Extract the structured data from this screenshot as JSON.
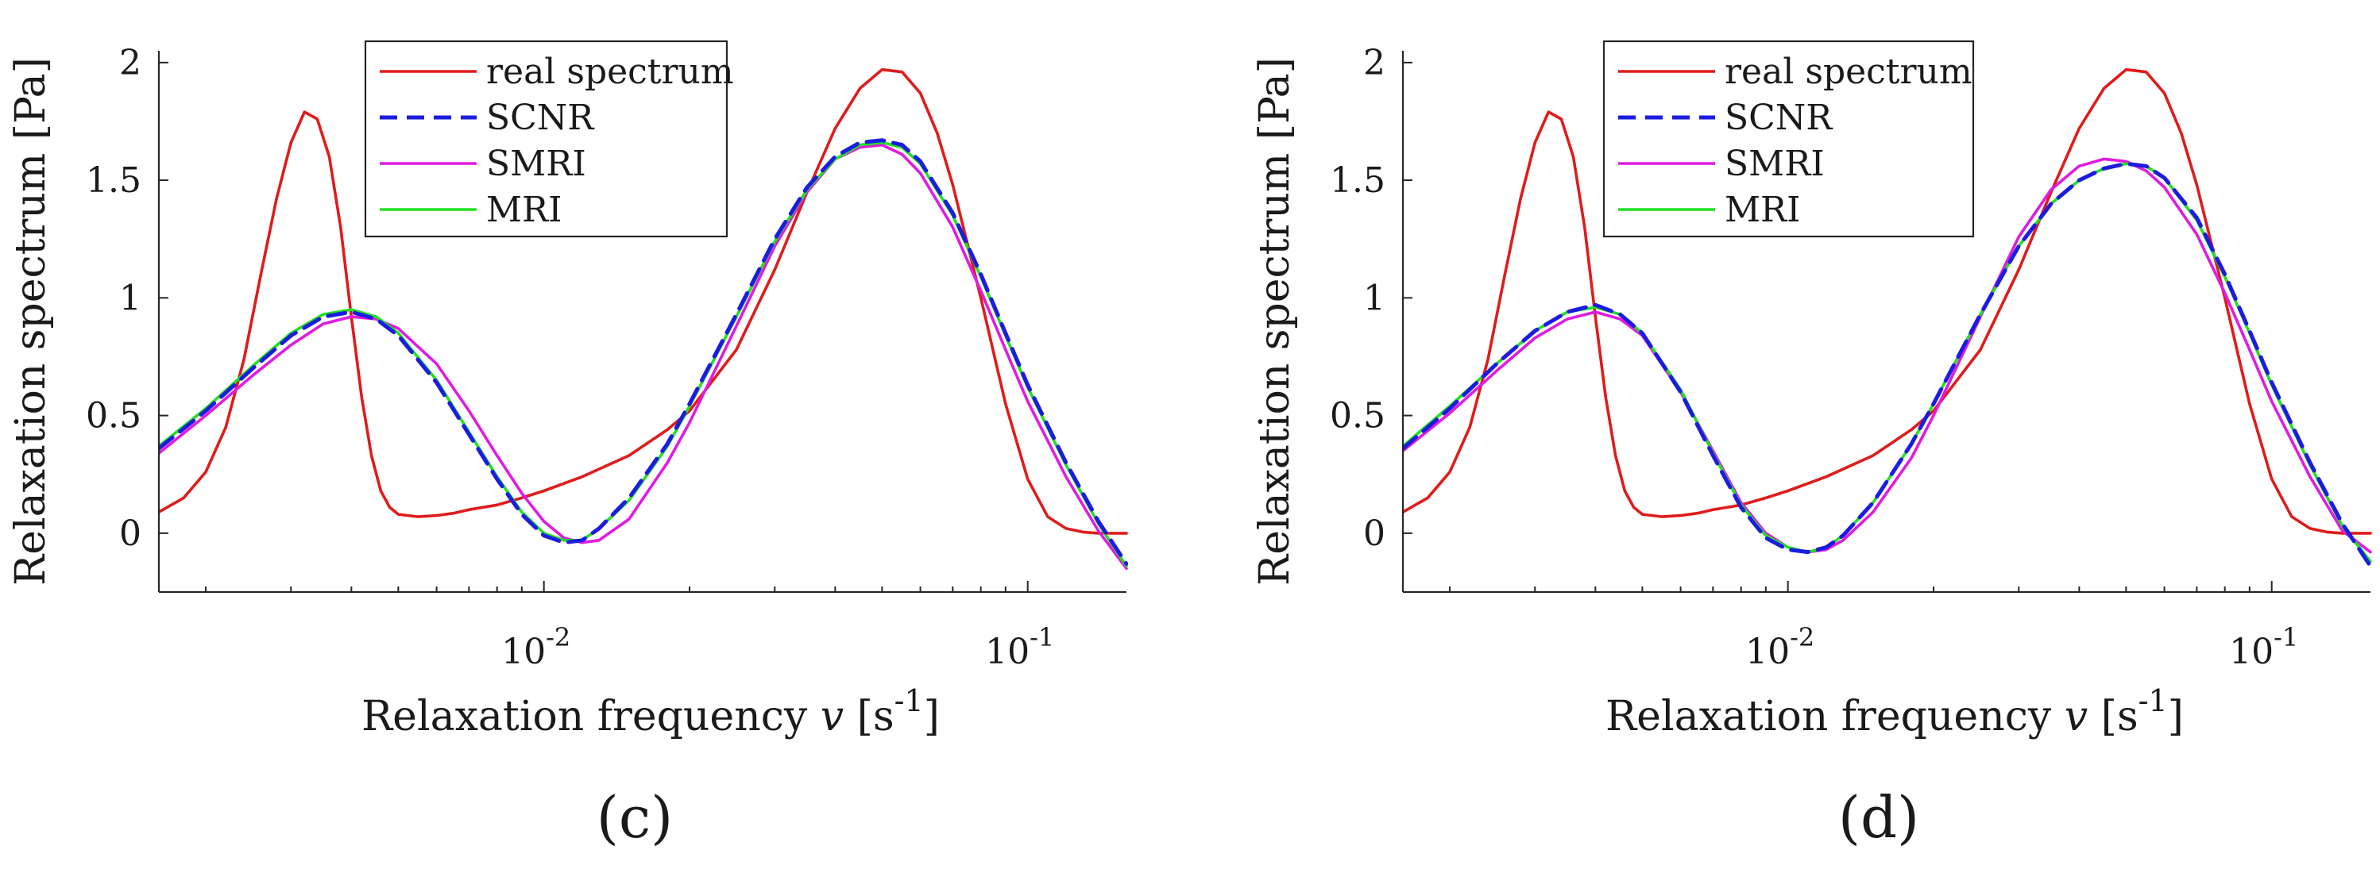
{
  "chart_data": [
    {
      "type": "line",
      "caption": "(c)",
      "xlabel": "Relaxation frequency",
      "xlabel_symbol": "v",
      "xlabel_unit_open": "[s",
      "xlabel_unit_exp": "-1",
      "xlabel_unit_close": "]",
      "ylabel": "Relaxation spectrum  [Pa]",
      "xscale": "log",
      "xlim": [
        0.0016,
        0.16
      ],
      "ylim": [
        -0.25,
        2.05
      ],
      "yticks": [
        0,
        0.5,
        1,
        1.5,
        2
      ],
      "ytick_labels": [
        "0",
        "0.5",
        "1",
        "1.5",
        "2"
      ],
      "xticks": [
        0.01,
        0.1
      ],
      "xtick_base": "10",
      "xtick_exps": [
        "-2",
        "-1"
      ],
      "legend_position": "top-center",
      "series": [
        {
          "name": "real spectrum",
          "color": "#e01b1b",
          "dash": "solid",
          "x": [
            0.0016,
            0.0018,
            0.002,
            0.0022,
            0.0024,
            0.0026,
            0.0028,
            0.003,
            0.0032,
            0.0034,
            0.0036,
            0.0038,
            0.004,
            0.0042,
            0.0044,
            0.0046,
            0.0048,
            0.005,
            0.0055,
            0.006,
            0.0065,
            0.007,
            0.008,
            0.009,
            0.01,
            0.012,
            0.015,
            0.018,
            0.02,
            0.025,
            0.03,
            0.035,
            0.04,
            0.045,
            0.05,
            0.055,
            0.06,
            0.065,
            0.07,
            0.08,
            0.09,
            0.1,
            0.11,
            0.12,
            0.13,
            0.14,
            0.15,
            0.16
          ],
          "y": [
            0.09,
            0.15,
            0.26,
            0.45,
            0.74,
            1.1,
            1.42,
            1.66,
            1.79,
            1.76,
            1.6,
            1.3,
            0.92,
            0.58,
            0.33,
            0.18,
            0.11,
            0.08,
            0.07,
            0.075,
            0.085,
            0.1,
            0.12,
            0.15,
            0.18,
            0.24,
            0.33,
            0.44,
            0.52,
            0.78,
            1.12,
            1.45,
            1.72,
            1.89,
            1.97,
            1.96,
            1.87,
            1.7,
            1.48,
            1.0,
            0.55,
            0.23,
            0.07,
            0.02,
            0.005,
            0.0,
            0.0,
            0.0
          ]
        },
        {
          "name": "SCNR",
          "color": "#1c1ce0",
          "dash": "dashed",
          "x": [
            0.0016,
            0.002,
            0.0025,
            0.003,
            0.0035,
            0.004,
            0.0045,
            0.005,
            0.006,
            0.007,
            0.008,
            0.009,
            0.01,
            0.011,
            0.012,
            0.013,
            0.015,
            0.018,
            0.02,
            0.025,
            0.03,
            0.035,
            0.04,
            0.045,
            0.05,
            0.055,
            0.06,
            0.07,
            0.08,
            0.09,
            0.1,
            0.12,
            0.14,
            0.16
          ],
          "y": [
            0.36,
            0.52,
            0.7,
            0.84,
            0.92,
            0.94,
            0.91,
            0.84,
            0.64,
            0.42,
            0.23,
            0.08,
            -0.01,
            -0.04,
            -0.03,
            0.02,
            0.15,
            0.38,
            0.55,
            0.93,
            1.25,
            1.47,
            1.6,
            1.66,
            1.67,
            1.65,
            1.58,
            1.36,
            1.1,
            0.85,
            0.63,
            0.3,
            0.05,
            -0.13
          ]
        },
        {
          "name": "SMRI",
          "color": "#e01be0",
          "dash": "solid",
          "x": [
            0.0016,
            0.002,
            0.0025,
            0.003,
            0.0035,
            0.004,
            0.0045,
            0.005,
            0.006,
            0.007,
            0.008,
            0.009,
            0.01,
            0.011,
            0.012,
            0.013,
            0.015,
            0.018,
            0.02,
            0.025,
            0.03,
            0.035,
            0.04,
            0.045,
            0.05,
            0.055,
            0.06,
            0.07,
            0.08,
            0.09,
            0.1,
            0.12,
            0.14,
            0.16
          ],
          "y": [
            0.34,
            0.5,
            0.67,
            0.8,
            0.89,
            0.92,
            0.91,
            0.87,
            0.72,
            0.52,
            0.33,
            0.17,
            0.05,
            -0.02,
            -0.04,
            -0.03,
            0.06,
            0.3,
            0.47,
            0.88,
            1.22,
            1.45,
            1.59,
            1.64,
            1.65,
            1.61,
            1.53,
            1.3,
            1.03,
            0.78,
            0.56,
            0.24,
            0.01,
            -0.15
          ]
        },
        {
          "name": "MRI",
          "color": "#22e022",
          "dash": "solid",
          "x": [
            0.0016,
            0.002,
            0.0025,
            0.003,
            0.0035,
            0.004,
            0.0045,
            0.005,
            0.006,
            0.007,
            0.008,
            0.009,
            0.01,
            0.011,
            0.012,
            0.013,
            0.015,
            0.018,
            0.02,
            0.025,
            0.03,
            0.035,
            0.04,
            0.045,
            0.05,
            0.055,
            0.06,
            0.07,
            0.08,
            0.09,
            0.1,
            0.12,
            0.14,
            0.16
          ],
          "y": [
            0.37,
            0.53,
            0.71,
            0.85,
            0.93,
            0.95,
            0.92,
            0.85,
            0.65,
            0.43,
            0.24,
            0.09,
            0.0,
            -0.03,
            -0.03,
            0.02,
            0.14,
            0.37,
            0.54,
            0.92,
            1.24,
            1.46,
            1.59,
            1.65,
            1.66,
            1.64,
            1.57,
            1.35,
            1.09,
            0.84,
            0.62,
            0.29,
            0.04,
            -0.14
          ]
        }
      ]
    },
    {
      "type": "line",
      "caption": "(d)",
      "xlabel": "Relaxation frequency",
      "xlabel_symbol": "v",
      "xlabel_unit_open": "[s",
      "xlabel_unit_exp": "-1",
      "xlabel_unit_close": "]",
      "ylabel": "Relaxation spectrum  [Pa]",
      "xscale": "log",
      "xlim": [
        0.0016,
        0.16
      ],
      "ylim": [
        -0.25,
        2.05
      ],
      "yticks": [
        0,
        0.5,
        1,
        1.5,
        2
      ],
      "ytick_labels": [
        "0",
        "0.5",
        "1",
        "1.5",
        "2"
      ],
      "xticks": [
        0.01,
        0.1
      ],
      "xtick_base": "10",
      "xtick_exps": [
        "-2",
        "-1"
      ],
      "legend_position": "top-left",
      "series": [
        {
          "name": "real spectrum",
          "color": "#e01b1b",
          "dash": "solid",
          "x": [
            0.0016,
            0.0018,
            0.002,
            0.0022,
            0.0024,
            0.0026,
            0.0028,
            0.003,
            0.0032,
            0.0034,
            0.0036,
            0.0038,
            0.004,
            0.0042,
            0.0044,
            0.0046,
            0.0048,
            0.005,
            0.0055,
            0.006,
            0.0065,
            0.007,
            0.008,
            0.009,
            0.01,
            0.012,
            0.015,
            0.018,
            0.02,
            0.025,
            0.03,
            0.035,
            0.04,
            0.045,
            0.05,
            0.055,
            0.06,
            0.065,
            0.07,
            0.08,
            0.09,
            0.1,
            0.11,
            0.12,
            0.13,
            0.14,
            0.15,
            0.16
          ],
          "y": [
            0.09,
            0.15,
            0.26,
            0.45,
            0.74,
            1.1,
            1.42,
            1.66,
            1.79,
            1.76,
            1.6,
            1.3,
            0.92,
            0.58,
            0.33,
            0.18,
            0.11,
            0.08,
            0.07,
            0.075,
            0.085,
            0.1,
            0.12,
            0.15,
            0.18,
            0.24,
            0.33,
            0.44,
            0.52,
            0.78,
            1.12,
            1.45,
            1.72,
            1.89,
            1.97,
            1.96,
            1.87,
            1.7,
            1.48,
            1.0,
            0.55,
            0.23,
            0.07,
            0.02,
            0.005,
            0.0,
            0.0,
            0.0
          ]
        },
        {
          "name": "SCNR",
          "color": "#1c1ce0",
          "dash": "dashed",
          "x": [
            0.0016,
            0.002,
            0.0025,
            0.003,
            0.0035,
            0.004,
            0.0045,
            0.005,
            0.006,
            0.007,
            0.008,
            0.009,
            0.01,
            0.011,
            0.012,
            0.013,
            0.015,
            0.018,
            0.02,
            0.025,
            0.03,
            0.035,
            0.04,
            0.045,
            0.05,
            0.055,
            0.06,
            0.07,
            0.08,
            0.09,
            0.1,
            0.12,
            0.14,
            0.16
          ],
          "y": [
            0.36,
            0.53,
            0.72,
            0.86,
            0.94,
            0.97,
            0.93,
            0.85,
            0.6,
            0.33,
            0.11,
            -0.02,
            -0.07,
            -0.08,
            -0.06,
            -0.01,
            0.13,
            0.38,
            0.55,
            0.93,
            1.22,
            1.4,
            1.5,
            1.55,
            1.57,
            1.56,
            1.51,
            1.34,
            1.1,
            0.86,
            0.64,
            0.3,
            0.04,
            -0.14
          ]
        },
        {
          "name": "SMRI",
          "color": "#e01be0",
          "dash": "solid",
          "x": [
            0.0016,
            0.002,
            0.0025,
            0.003,
            0.0035,
            0.004,
            0.0045,
            0.005,
            0.006,
            0.007,
            0.008,
            0.009,
            0.01,
            0.011,
            0.012,
            0.013,
            0.015,
            0.018,
            0.02,
            0.025,
            0.03,
            0.035,
            0.04,
            0.045,
            0.05,
            0.055,
            0.06,
            0.07,
            0.08,
            0.09,
            0.1,
            0.12,
            0.14,
            0.16
          ],
          "y": [
            0.35,
            0.51,
            0.69,
            0.83,
            0.91,
            0.94,
            0.91,
            0.84,
            0.6,
            0.35,
            0.13,
            0.0,
            -0.06,
            -0.08,
            -0.07,
            -0.03,
            0.09,
            0.32,
            0.5,
            0.92,
            1.26,
            1.46,
            1.56,
            1.59,
            1.58,
            1.54,
            1.47,
            1.27,
            1.02,
            0.78,
            0.56,
            0.24,
            0.01,
            -0.08
          ]
        },
        {
          "name": "MRI",
          "color": "#22e022",
          "dash": "solid",
          "x": [
            0.0016,
            0.002,
            0.0025,
            0.003,
            0.0035,
            0.004,
            0.0045,
            0.005,
            0.006,
            0.007,
            0.008,
            0.009,
            0.01,
            0.011,
            0.012,
            0.013,
            0.015,
            0.018,
            0.02,
            0.025,
            0.03,
            0.035,
            0.04,
            0.045,
            0.05,
            0.055,
            0.06,
            0.07,
            0.08,
            0.09,
            0.1,
            0.12,
            0.14,
            0.16
          ],
          "y": [
            0.37,
            0.54,
            0.72,
            0.86,
            0.94,
            0.96,
            0.93,
            0.85,
            0.61,
            0.34,
            0.12,
            -0.01,
            -0.06,
            -0.08,
            -0.06,
            -0.01,
            0.13,
            0.38,
            0.55,
            0.93,
            1.22,
            1.4,
            1.5,
            1.55,
            1.57,
            1.56,
            1.51,
            1.33,
            1.09,
            0.85,
            0.63,
            0.29,
            0.03,
            -0.12
          ]
        }
      ]
    }
  ]
}
